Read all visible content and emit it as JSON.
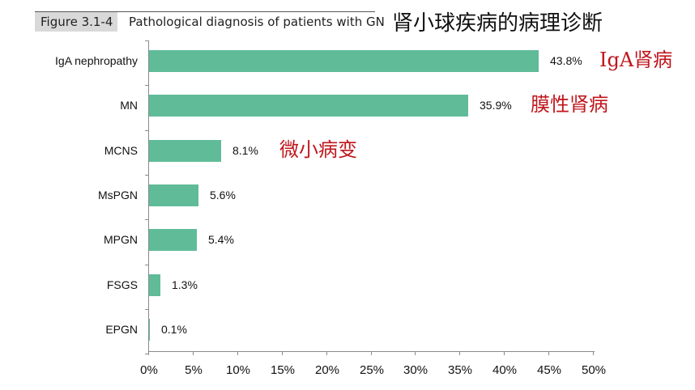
{
  "header": {
    "figure_label": "Figure 3.1-4",
    "figure_title": "Pathological diagnosis of patients with GN",
    "chinese_title": "肾小球疾病的病理诊断"
  },
  "accent_color": "#5fbb98",
  "annotation_color": "#c0161c",
  "annotations": [
    {
      "text": "IgA肾病",
      "target": "IgA nephropathy"
    },
    {
      "text": "膜性肾病",
      "target": "MN"
    },
    {
      "text": "微小病变",
      "target": "MCNS"
    }
  ],
  "chart_data": {
    "type": "bar",
    "orientation": "horizontal",
    "title": "Pathological diagnosis of patients with GN",
    "subtitle": "肾小球疾病的病理诊断",
    "categories": [
      "IgA nephropathy",
      "MN",
      "MCNS",
      "MsPGN",
      "MPGN",
      "FSGS",
      "EPGN"
    ],
    "values": [
      43.8,
      35.9,
      8.1,
      5.6,
      5.4,
      1.3,
      0.1
    ],
    "value_labels": [
      "43.8%",
      "35.9%",
      "8.1%",
      "5.6%",
      "5.4%",
      "1.3%",
      "0.1%"
    ],
    "xlabel": "",
    "ylabel": "",
    "xlim": [
      0,
      50
    ],
    "xticks": [
      "0%",
      "5%",
      "10%",
      "15%",
      "20%",
      "25%",
      "30%",
      "35%",
      "40%",
      "45%",
      "50%"
    ],
    "grid": false,
    "legend": null,
    "bar_color": "#5fbb98"
  }
}
